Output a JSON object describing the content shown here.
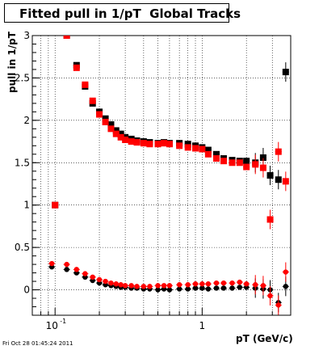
{
  "chart_data": {
    "type": "scatter",
    "title": "Fitted pull in 1/pT  Global Tracks",
    "xlabel": "pT (GeV/c)",
    "ylabel": "pull in 1/pT",
    "xscale": "log",
    "xlim": [
      0.07,
      4.0
    ],
    "ylim": [
      -0.3,
      3.0
    ],
    "grid": true,
    "y_ticks": [
      "0",
      "0.5",
      "1",
      "1.5",
      "2",
      "2.5",
      "3"
    ],
    "series": [
      {
        "color": "#000000",
        "marker": "square",
        "x": [
          0.1,
          0.12,
          0.14,
          0.16,
          0.18,
          0.2,
          0.22,
          0.24,
          0.26,
          0.28,
          0.3,
          0.33,
          0.36,
          0.4,
          0.44,
          0.5,
          0.55,
          0.6,
          0.7,
          0.8,
          0.9,
          1.0,
          1.1,
          1.25,
          1.4,
          1.6,
          1.8,
          2.0,
          2.3,
          2.6,
          2.9,
          3.3,
          3.7
        ],
        "y": [
          1.0,
          3.0,
          2.65,
          2.4,
          2.2,
          2.1,
          2.02,
          1.95,
          1.88,
          1.84,
          1.8,
          1.78,
          1.76,
          1.75,
          1.74,
          1.73,
          1.74,
          1.73,
          1.73,
          1.72,
          1.7,
          1.68,
          1.65,
          1.6,
          1.55,
          1.53,
          1.52,
          1.52,
          1.5,
          1.56,
          1.35,
          1.3,
          2.57
        ]
      },
      {
        "color": "#ff0000",
        "marker": "square",
        "x": [
          0.1,
          0.12,
          0.14,
          0.16,
          0.18,
          0.2,
          0.22,
          0.24,
          0.26,
          0.28,
          0.3,
          0.33,
          0.36,
          0.4,
          0.44,
          0.5,
          0.55,
          0.6,
          0.7,
          0.8,
          0.9,
          1.0,
          1.1,
          1.25,
          1.4,
          1.6,
          1.8,
          2.0,
          2.3,
          2.6,
          2.9,
          3.3,
          3.7
        ],
        "y": [
          1.0,
          3.0,
          2.62,
          2.42,
          2.23,
          2.07,
          1.98,
          1.9,
          1.84,
          1.8,
          1.77,
          1.75,
          1.74,
          1.73,
          1.72,
          1.72,
          1.73,
          1.72,
          1.7,
          1.68,
          1.67,
          1.66,
          1.6,
          1.55,
          1.52,
          1.5,
          1.5,
          1.45,
          1.48,
          1.44,
          0.83,
          1.63,
          1.28
        ]
      },
      {
        "color": "#000000",
        "marker": "circle",
        "x": [
          0.095,
          0.12,
          0.14,
          0.16,
          0.18,
          0.2,
          0.22,
          0.24,
          0.26,
          0.28,
          0.3,
          0.33,
          0.36,
          0.4,
          0.44,
          0.5,
          0.55,
          0.6,
          0.7,
          0.8,
          0.9,
          1.0,
          1.1,
          1.25,
          1.4,
          1.6,
          1.8,
          2.0,
          2.3,
          2.6,
          2.9,
          3.3,
          3.7
        ],
        "y": [
          0.27,
          0.24,
          0.2,
          0.15,
          0.11,
          0.08,
          0.06,
          0.05,
          0.04,
          0.03,
          0.03,
          0.02,
          0.02,
          0.01,
          0.01,
          0.0,
          0.01,
          0.0,
          0.01,
          0.01,
          0.02,
          0.02,
          0.01,
          0.02,
          0.02,
          0.02,
          0.03,
          0.03,
          0.02,
          0.01,
          0.0,
          -0.15,
          0.04
        ]
      },
      {
        "color": "#ff0000",
        "marker": "circle",
        "x": [
          0.095,
          0.12,
          0.14,
          0.16,
          0.18,
          0.2,
          0.22,
          0.24,
          0.26,
          0.28,
          0.3,
          0.33,
          0.36,
          0.4,
          0.44,
          0.5,
          0.55,
          0.6,
          0.7,
          0.8,
          0.9,
          1.0,
          1.1,
          1.25,
          1.4,
          1.6,
          1.8,
          2.0,
          2.3,
          2.6,
          2.9,
          3.3,
          3.7
        ],
        "y": [
          0.31,
          0.3,
          0.24,
          0.19,
          0.15,
          0.12,
          0.1,
          0.08,
          0.07,
          0.06,
          0.05,
          0.05,
          0.04,
          0.04,
          0.04,
          0.05,
          0.05,
          0.05,
          0.06,
          0.06,
          0.07,
          0.07,
          0.07,
          0.08,
          0.08,
          0.08,
          0.09,
          0.07,
          0.06,
          0.05,
          -0.07,
          -0.18,
          0.21
        ]
      }
    ]
  },
  "footer": "Fri Oct 28 01:45:24 2011"
}
